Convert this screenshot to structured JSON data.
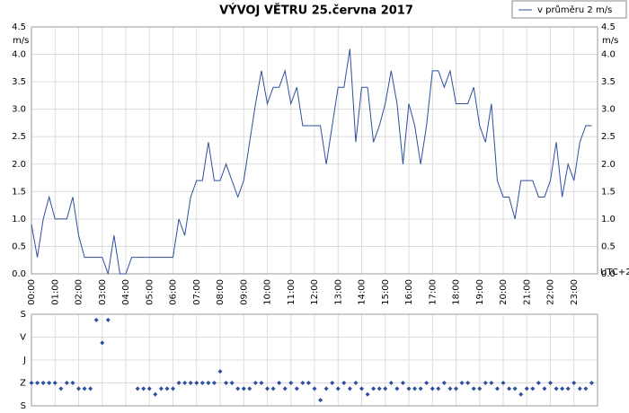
{
  "chart_data": [
    {
      "type": "line",
      "title": "VÝVOJ VĚTRU  25.června 2017",
      "ylabel": "m/s",
      "timezone_label": "UTC+2",
      "grid": true,
      "x": [
        0,
        0.25,
        0.5,
        0.75,
        1,
        1.25,
        1.5,
        1.75,
        2,
        2.25,
        2.5,
        2.75,
        3,
        3.25,
        3.5,
        3.75,
        4,
        4.25,
        4.5,
        4.75,
        5,
        5.25,
        5.5,
        5.75,
        6,
        6.25,
        6.5,
        6.75,
        7,
        7.25,
        7.5,
        7.75,
        8,
        8.25,
        8.5,
        8.75,
        9,
        9.25,
        9.5,
        9.75,
        10,
        10.25,
        10.5,
        10.75,
        11,
        11.25,
        11.5,
        11.75,
        12,
        12.25,
        12.5,
        12.75,
        13,
        13.25,
        13.5,
        13.75,
        14,
        14.25,
        14.5,
        14.75,
        15,
        15.25,
        15.5,
        15.75,
        16,
        16.25,
        16.5,
        16.75,
        17,
        17.25,
        17.5,
        17.75,
        18,
        18.25,
        18.5,
        18.75,
        19,
        19.25,
        19.5,
        19.75,
        20,
        20.25,
        20.5,
        20.75,
        21,
        21.25,
        21.5,
        21.75,
        22,
        22.25,
        22.5,
        22.75,
        23,
        23.25,
        23.5,
        23.75
      ],
      "series": [
        {
          "name": "v průměru 2 m/s",
          "color": "#2e4f9e",
          "values": [
            0.9,
            0.3,
            1.0,
            1.4,
            1.0,
            1.0,
            1.0,
            1.4,
            0.7,
            0.3,
            0.3,
            0.3,
            0.3,
            0.0,
            0.7,
            0.0,
            0.0,
            0.3,
            0.3,
            0.3,
            0.3,
            0.3,
            0.3,
            0.3,
            0.3,
            1.0,
            0.7,
            1.4,
            1.7,
            1.7,
            2.4,
            1.7,
            1.7,
            2.0,
            1.7,
            1.4,
            1.7,
            2.4,
            3.1,
            3.7,
            3.1,
            3.4,
            3.4,
            3.7,
            3.1,
            3.4,
            2.7,
            2.7,
            2.7,
            2.7,
            2.0,
            2.7,
            3.4,
            3.4,
            4.1,
            2.4,
            3.4,
            3.4,
            2.4,
            2.7,
            3.1,
            3.7,
            3.1,
            2.0,
            3.1,
            2.7,
            2.0,
            2.7,
            3.7,
            3.7,
            3.4,
            3.7,
            3.1,
            3.1,
            3.1,
            3.4,
            2.7,
            2.4,
            3.1,
            1.7,
            1.4,
            1.4,
            1.0,
            1.7,
            1.7,
            1.7,
            1.4,
            1.4,
            1.7,
            2.4,
            1.4,
            2.0,
            1.7,
            2.4,
            2.7,
            2.7
          ]
        }
      ],
      "xlim": [
        0,
        24
      ],
      "xticks": [
        {
          "value": 0,
          "label": "00:00"
        },
        {
          "value": 1,
          "label": "01:00"
        },
        {
          "value": 2,
          "label": "02:00"
        },
        {
          "value": 3,
          "label": "03:00"
        },
        {
          "value": 4,
          "label": "04:00"
        },
        {
          "value": 5,
          "label": "05:00"
        },
        {
          "value": 6,
          "label": "06:00"
        },
        {
          "value": 7,
          "label": "07:00"
        },
        {
          "value": 8,
          "label": "08:00"
        },
        {
          "value": 9,
          "label": "09:00"
        },
        {
          "value": 10,
          "label": "10:00"
        },
        {
          "value": 11,
          "label": "11:00"
        },
        {
          "value": 12,
          "label": "12:00"
        },
        {
          "value": 13,
          "label": "13:00"
        },
        {
          "value": 14,
          "label": "14:00"
        },
        {
          "value": 15,
          "label": "15:00"
        },
        {
          "value": 16,
          "label": "16:00"
        },
        {
          "value": 17,
          "label": "17:00"
        },
        {
          "value": 18,
          "label": "18:00"
        },
        {
          "value": 19,
          "label": "19:00"
        },
        {
          "value": 20,
          "label": "20:00"
        },
        {
          "value": 21,
          "label": "21:00"
        },
        {
          "value": 22,
          "label": "22:00"
        },
        {
          "value": 23,
          "label": "23:00"
        }
      ],
      "ylim": [
        0,
        4.5
      ],
      "yticks": [
        {
          "value": 0,
          "label": "0.0"
        },
        0.5,
        {
          "value": 1,
          "label": "1.0"
        },
        1.5,
        {
          "value": 2,
          "label": "2.0"
        },
        2.5,
        {
          "value": 3,
          "label": "3.0"
        },
        3.5,
        {
          "value": 4,
          "label": "4.0"
        },
        4.5
      ]
    },
    {
      "type": "scatter",
      "color": "#2e4f9e",
      "grid": true,
      "x": [
        0,
        0.25,
        0.5,
        0.75,
        1,
        1.25,
        1.5,
        1.75,
        2,
        2.25,
        2.5,
        2.75,
        3,
        3.25,
        3.5,
        3.75,
        4,
        4.25,
        4.5,
        4.75,
        5,
        5.25,
        5.5,
        5.75,
        6,
        6.25,
        6.5,
        6.75,
        7,
        7.25,
        7.5,
        7.75,
        8,
        8.25,
        8.5,
        8.75,
        9,
        9.25,
        9.5,
        9.75,
        10,
        10.25,
        10.5,
        10.75,
        11,
        11.25,
        11.5,
        11.75,
        12,
        12.25,
        12.5,
        12.75,
        13,
        13.25,
        13.5,
        13.75,
        14,
        14.25,
        14.5,
        14.75,
        15,
        15.25,
        15.5,
        15.75,
        16,
        16.25,
        16.5,
        16.75,
        17,
        17.25,
        17.5,
        17.75,
        18,
        18.25,
        18.5,
        18.75,
        19,
        19.25,
        19.5,
        19.75,
        20,
        20.25,
        20.5,
        20.75,
        21,
        21.25,
        21.5,
        21.75,
        22,
        22.25,
        22.5,
        22.75,
        23,
        23.25,
        23.5,
        23.75
      ],
      "values": [
        270,
        270,
        270,
        270,
        270,
        292.5,
        270,
        270,
        292.5,
        292.5,
        292.5,
        22.5,
        112.5,
        22.5,
        null,
        null,
        null,
        null,
        292.5,
        292.5,
        292.5,
        315,
        292.5,
        292.5,
        292.5,
        270,
        270,
        270,
        270,
        270,
        270,
        270,
        225,
        270,
        270,
        292.5,
        292.5,
        292.5,
        270,
        270,
        292.5,
        292.5,
        270,
        292.5,
        270,
        292.5,
        270,
        270,
        292.5,
        337.5,
        292.5,
        270,
        292.5,
        270,
        292.5,
        270,
        292.5,
        315,
        292.5,
        292.5,
        292.5,
        270,
        292.5,
        270,
        292.5,
        292.5,
        292.5,
        270,
        292.5,
        292.5,
        270,
        292.5,
        292.5,
        270,
        270,
        292.5,
        292.5,
        270,
        270,
        292.5,
        270,
        292.5,
        292.5,
        315,
        292.5,
        292.5,
        270,
        292.5,
        270,
        292.5,
        292.5,
        292.5,
        270,
        292.5,
        292.5,
        270
      ],
      "xlim": [
        0,
        24
      ],
      "ylim": [
        360,
        0
      ],
      "yticks": [
        {
          "value": 0,
          "label": "S"
        },
        {
          "value": 90,
          "label": "V"
        },
        {
          "value": 180,
          "label": "J"
        },
        {
          "value": 270,
          "label": "Z"
        },
        {
          "value": 360,
          "label": "S"
        }
      ]
    }
  ]
}
